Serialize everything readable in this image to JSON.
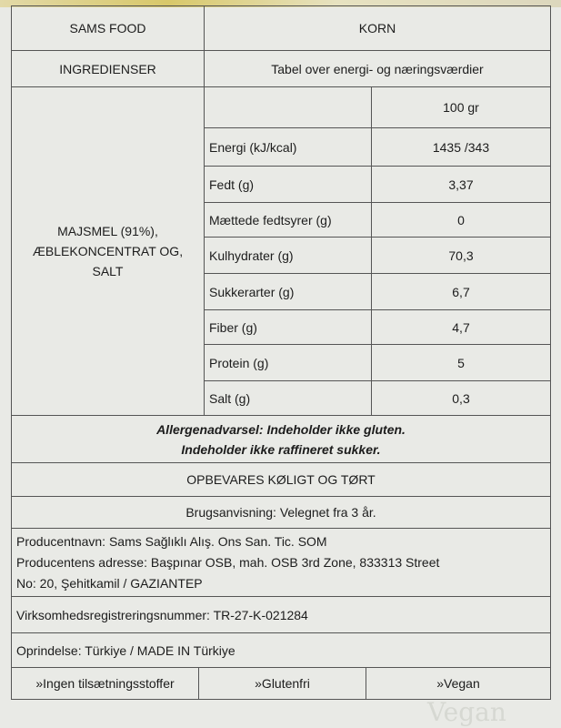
{
  "header": {
    "brand": "SAMS FOOD",
    "product": "KORN"
  },
  "ingredients": {
    "label": "INGREDIENSER",
    "text": "MAJSMEL (91%), ÆBLEKONCENTRAT OG, SALT"
  },
  "nutrition": {
    "title": "Tabel over energi- og næringsværdier",
    "column_header": "100 gr",
    "rows": [
      {
        "label": "Energi (kJ/kcal)",
        "value": "1435 /343"
      },
      {
        "label": "Fedt (g)",
        "value": "3,37"
      },
      {
        "label": "Mættede fedtsyrer (g)",
        "value": "0"
      },
      {
        "label": "Kulhydrater (g)",
        "value": "70,3"
      },
      {
        "label": "Sukkerarter (g)",
        "value": "6,7"
      },
      {
        "label": "Fiber (g)",
        "value": "4,7"
      },
      {
        "label": "Protein (g)",
        "value": "5"
      },
      {
        "label": "Salt (g)",
        "value": "0,3"
      }
    ]
  },
  "allergen": {
    "line1": "Allergenadvarsel: Indeholder ikke gluten.",
    "line2": "Indeholder ikke raffineret sukker."
  },
  "storage": "OPBEVARES KØLIGT OG TØRT",
  "usage": "Brugsanvisning: Velegnet fra 3 år.",
  "producer": {
    "name": "Producentnavn: Sams Sağlıklı Alış. Ons San. Tic. SOM",
    "address1": "Producentens adresse: Başpınar OSB, mah. OSB 3rd Zone, 833313 Street",
    "address2": "No: 20, Şehitkamil / GAZIANTEP"
  },
  "registration": "Virksomhedsregistreringsnummer: TR-27-K-021284",
  "origin": "Oprindelse: Türkiye / MADE IN Türkiye",
  "claims": [
    "»Ingen tilsætningsstoffer",
    "»Glutenfri",
    "»Vegan"
  ],
  "watermark": "Vegan"
}
